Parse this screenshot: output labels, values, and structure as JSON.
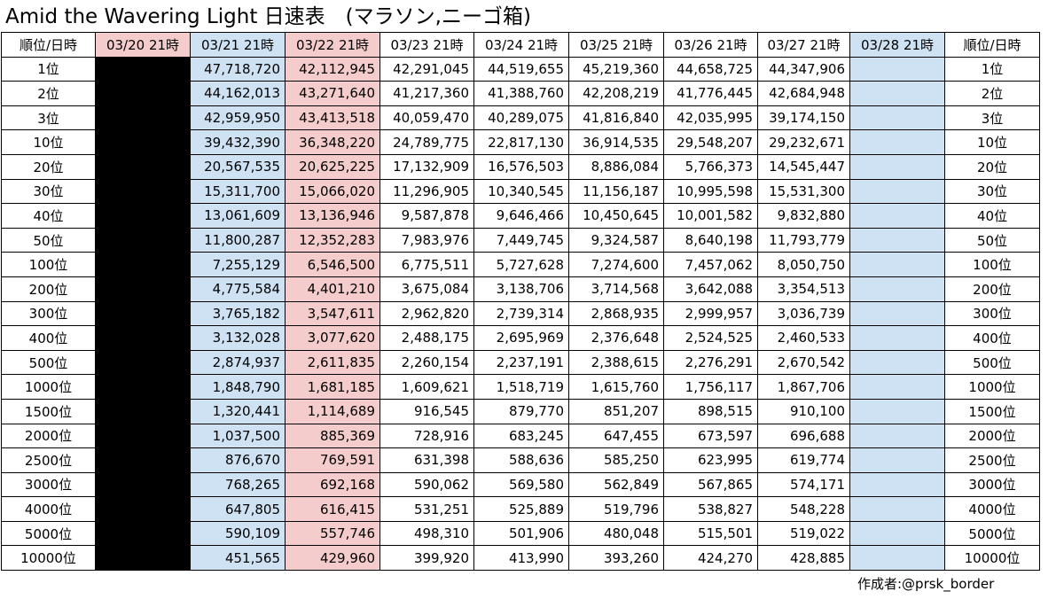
{
  "title": "Amid the Wavering Light 日速表　(マラソン,ニーゴ箱)",
  "headers": [
    "順位/日時",
    "03/20 21時",
    "03/21 21時",
    "03/22 21時",
    "03/23 21時",
    "03/24 21時",
    "03/25 21時",
    "03/26 21時",
    "03/27 21時",
    "03/28 21時",
    "順位/日時"
  ],
  "header_colors": {
    "pink": "#f4cccc",
    "blue": "#cfe2f3",
    "black": "#000000"
  },
  "rows": [
    {
      "rank": "1位",
      "values": [
        "",
        "47,718,720",
        "42,112,945",
        "42,291,045",
        "44,519,655",
        "45,219,360",
        "44,658,725",
        "44,347,906",
        ""
      ]
    },
    {
      "rank": "2位",
      "values": [
        "",
        "44,162,013",
        "43,271,640",
        "41,217,360",
        "41,388,760",
        "42,208,219",
        "41,776,445",
        "42,684,948",
        ""
      ]
    },
    {
      "rank": "3位",
      "values": [
        "",
        "42,959,950",
        "43,413,518",
        "40,059,470",
        "40,289,075",
        "41,816,840",
        "42,035,995",
        "39,174,150",
        ""
      ]
    },
    {
      "rank": "10位",
      "values": [
        "",
        "39,432,390",
        "36,348,220",
        "24,789,775",
        "22,817,130",
        "36,914,535",
        "29,548,207",
        "29,232,671",
        ""
      ]
    },
    {
      "rank": "20位",
      "values": [
        "",
        "20,567,535",
        "20,625,225",
        "17,132,909",
        "16,576,503",
        "8,886,084",
        "5,766,373",
        "14,545,447",
        ""
      ]
    },
    {
      "rank": "30位",
      "values": [
        "",
        "15,311,700",
        "15,066,020",
        "11,296,905",
        "10,340,545",
        "11,156,187",
        "10,995,598",
        "15,531,300",
        ""
      ]
    },
    {
      "rank": "40位",
      "values": [
        "",
        "13,061,609",
        "13,136,946",
        "9,587,878",
        "9,646,466",
        "10,450,645",
        "10,001,582",
        "9,832,880",
        ""
      ]
    },
    {
      "rank": "50位",
      "values": [
        "",
        "11,800,287",
        "12,352,283",
        "7,983,976",
        "7,449,745",
        "9,324,587",
        "8,640,198",
        "11,793,779",
        ""
      ]
    },
    {
      "rank": "100位",
      "values": [
        "",
        "7,255,129",
        "6,546,500",
        "6,775,511",
        "5,727,628",
        "7,274,600",
        "7,457,062",
        "8,050,750",
        ""
      ]
    },
    {
      "rank": "200位",
      "values": [
        "",
        "4,775,584",
        "4,401,210",
        "3,675,084",
        "3,138,706",
        "3,714,568",
        "3,642,088",
        "3,354,513",
        ""
      ]
    },
    {
      "rank": "300位",
      "values": [
        "",
        "3,765,182",
        "3,547,611",
        "2,962,820",
        "2,739,314",
        "2,868,935",
        "2,999,957",
        "3,036,739",
        ""
      ]
    },
    {
      "rank": "400位",
      "values": [
        "",
        "3,132,028",
        "3,077,620",
        "2,488,175",
        "2,695,969",
        "2,376,648",
        "2,524,525",
        "2,460,533",
        ""
      ]
    },
    {
      "rank": "500位",
      "values": [
        "",
        "2,874,937",
        "2,611,835",
        "2,260,154",
        "2,237,191",
        "2,388,615",
        "2,276,291",
        "2,670,542",
        ""
      ]
    },
    {
      "rank": "1000位",
      "values": [
        "",
        "1,848,790",
        "1,681,185",
        "1,609,621",
        "1,518,719",
        "1,615,760",
        "1,756,117",
        "1,867,706",
        ""
      ]
    },
    {
      "rank": "1500位",
      "values": [
        "",
        "1,320,441",
        "1,114,689",
        "916,545",
        "879,770",
        "851,207",
        "898,515",
        "910,100",
        ""
      ]
    },
    {
      "rank": "2000位",
      "values": [
        "",
        "1,037,500",
        "885,369",
        "728,916",
        "683,245",
        "647,455",
        "673,597",
        "696,688",
        ""
      ]
    },
    {
      "rank": "2500位",
      "values": [
        "",
        "876,670",
        "769,591",
        "631,398",
        "588,636",
        "585,250",
        "623,995",
        "619,774",
        ""
      ]
    },
    {
      "rank": "3000位",
      "values": [
        "",
        "768,265",
        "692,168",
        "590,062",
        "569,580",
        "562,849",
        "567,865",
        "574,171",
        ""
      ]
    },
    {
      "rank": "4000位",
      "values": [
        "",
        "647,805",
        "616,415",
        "531,251",
        "525,889",
        "519,796",
        "538,827",
        "548,228",
        ""
      ]
    },
    {
      "rank": "5000位",
      "values": [
        "",
        "590,109",
        "557,746",
        "498,310",
        "501,906",
        "480,048",
        "515,501",
        "519,022",
        ""
      ]
    },
    {
      "rank": "10000位",
      "values": [
        "",
        "451,565",
        "429,960",
        "399,920",
        "413,990",
        "393,260",
        "424,270",
        "428,885",
        ""
      ]
    }
  ],
  "credit": "作成者:@prsk_border"
}
